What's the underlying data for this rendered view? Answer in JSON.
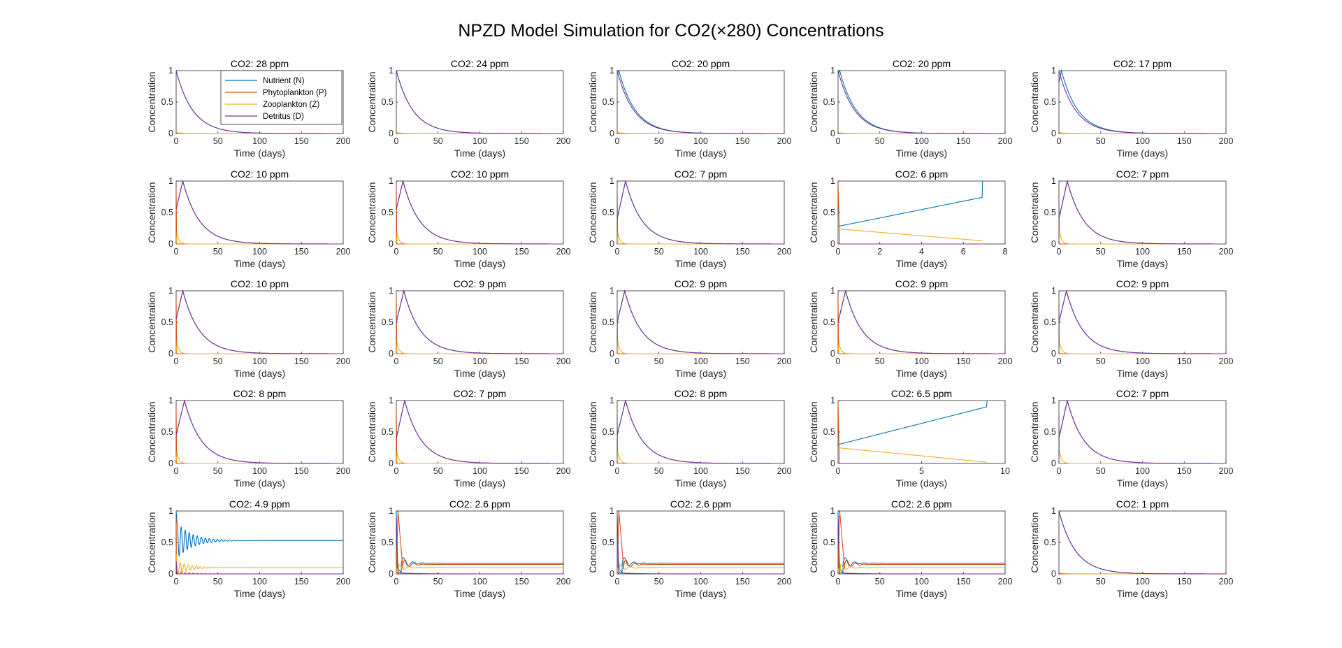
{
  "figure": {
    "title": "NPZD Model Simulation for CO2(×280) Concentrations",
    "colors": {
      "N": "#0072BD",
      "P": "#D95319",
      "Z": "#EDB120",
      "D": "#7E2F8E"
    }
  },
  "legend": {
    "placement": "top-right of first panel",
    "entries": [
      "Nutrient (N)",
      "Phytoplankton (P)",
      "Zooplankton (Z)",
      "Detritus (D)"
    ]
  },
  "chart_data": [
    {
      "type": "line",
      "title": "CO2: 28 ppm",
      "kind": "decay",
      "nstart": 1,
      "nend": 1,
      "xlim": [
        0,
        200
      ],
      "xticks": [
        0,
        50,
        100,
        150,
        200
      ],
      "ylim": [
        0,
        1
      ],
      "yticks": [
        "0",
        "0.5",
        "1"
      ],
      "xlabel": "Time (days)",
      "ylabel": "Concentration"
    },
    {
      "type": "line",
      "title": "CO2: 24 ppm",
      "kind": "decay",
      "nstart": 1,
      "nend": 1,
      "xlim": [
        0,
        200
      ],
      "xticks": [
        0,
        50,
        100,
        150,
        200
      ],
      "ylim": [
        0,
        1
      ],
      "yticks": [
        "0",
        "0.5",
        "1"
      ],
      "xlabel": "Time (days)",
      "ylabel": "Concentration"
    },
    {
      "type": "line",
      "title": "CO2: 20 ppm",
      "kind": "decay",
      "nstart": 0.95,
      "nend": 2,
      "xlim": [
        0,
        200
      ],
      "xticks": [
        0,
        50,
        100,
        150,
        200
      ],
      "ylim": [
        0,
        1
      ],
      "yticks": [
        "0",
        "0.5",
        "1"
      ],
      "xlabel": "Time (days)",
      "ylabel": "Concentration"
    },
    {
      "type": "line",
      "title": "CO2: 20 ppm",
      "kind": "decay",
      "nstart": 0.95,
      "nend": 2,
      "xlim": [
        0,
        200
      ],
      "xticks": [
        0,
        50,
        100,
        150,
        200
      ],
      "ylim": [
        0,
        1
      ],
      "yticks": [
        "0",
        "0.5",
        "1"
      ],
      "xlabel": "Time (days)",
      "ylabel": "Concentration"
    },
    {
      "type": "line",
      "title": "CO2: 17 ppm",
      "kind": "decay",
      "nstart": 0.8,
      "nend": 3,
      "xlim": [
        0,
        200
      ],
      "xticks": [
        0,
        50,
        100,
        150,
        200
      ],
      "ylim": [
        0,
        1
      ],
      "yticks": [
        "0",
        "0.5",
        "1"
      ],
      "xlabel": "Time (days)",
      "ylabel": "Concentration"
    },
    {
      "type": "line",
      "title": "CO2: 10 ppm",
      "kind": "rise",
      "nstart": 0.55,
      "nend": 8,
      "xlim": [
        0,
        200
      ],
      "xticks": [
        0,
        50,
        100,
        150,
        200
      ],
      "ylim": [
        0,
        1
      ],
      "yticks": [
        "0",
        "0.5",
        "1"
      ],
      "xlabel": "Time (days)",
      "ylabel": "Concentration"
    },
    {
      "type": "line",
      "title": "CO2: 10 ppm",
      "kind": "rise",
      "nstart": 0.55,
      "nend": 8,
      "xlim": [
        0,
        200
      ],
      "xticks": [
        0,
        50,
        100,
        150,
        200
      ],
      "ylim": [
        0,
        1
      ],
      "yticks": [
        "0",
        "0.5",
        "1"
      ],
      "xlabel": "Time (days)",
      "ylabel": "Concentration"
    },
    {
      "type": "line",
      "title": "CO2: 7 ppm",
      "kind": "rise",
      "nstart": 0.4,
      "nend": 10,
      "xlim": [
        0,
        200
      ],
      "xticks": [
        0,
        50,
        100,
        150,
        200
      ],
      "ylim": [
        0,
        1
      ],
      "yticks": [
        "0",
        "0.5",
        "1"
      ],
      "xlabel": "Time (days)",
      "ylabel": "Concentration"
    },
    {
      "type": "line",
      "title": "CO2: 6 ppm",
      "kind": "short",
      "tend": 6.9,
      "nstart": 0.28,
      "nbeforejump": 0.74,
      "zstart": 0.24,
      "zend": 0.05,
      "xlim": [
        0,
        8
      ],
      "xticks": [
        0,
        2,
        4,
        6,
        8
      ],
      "ylim": [
        0,
        1
      ],
      "yticks": [
        "0",
        "0.5",
        "1"
      ],
      "xlabel": "Time (days)",
      "ylabel": "Concentration"
    },
    {
      "type": "line",
      "title": "CO2: 7 ppm",
      "kind": "rise",
      "nstart": 0.4,
      "nend": 10,
      "xlim": [
        0,
        200
      ],
      "xticks": [
        0,
        50,
        100,
        150,
        200
      ],
      "ylim": [
        0,
        1
      ],
      "yticks": [
        "0",
        "0.5",
        "1"
      ],
      "xlabel": "Time (days)",
      "ylabel": "Concentration"
    },
    {
      "type": "line",
      "title": "CO2: 10 ppm",
      "kind": "rise",
      "nstart": 0.55,
      "nend": 8,
      "xlim": [
        0,
        200
      ],
      "xticks": [
        0,
        50,
        100,
        150,
        200
      ],
      "ylim": [
        0,
        1
      ],
      "yticks": [
        "0",
        "0.5",
        "1"
      ],
      "xlabel": "Time (days)",
      "ylabel": "Concentration"
    },
    {
      "type": "line",
      "title": "CO2: 9 ppm",
      "kind": "rise",
      "nstart": 0.5,
      "nend": 9,
      "xlim": [
        0,
        200
      ],
      "xticks": [
        0,
        50,
        100,
        150,
        200
      ],
      "ylim": [
        0,
        1
      ],
      "yticks": [
        "0",
        "0.5",
        "1"
      ],
      "xlabel": "Time (days)",
      "ylabel": "Concentration"
    },
    {
      "type": "line",
      "title": "CO2: 9 ppm",
      "kind": "rise",
      "nstart": 0.5,
      "nend": 9,
      "xlim": [
        0,
        200
      ],
      "xticks": [
        0,
        50,
        100,
        150,
        200
      ],
      "ylim": [
        0,
        1
      ],
      "yticks": [
        "0",
        "0.5",
        "1"
      ],
      "xlabel": "Time (days)",
      "ylabel": "Concentration"
    },
    {
      "type": "line",
      "title": "CO2: 9 ppm",
      "kind": "rise",
      "nstart": 0.5,
      "nend": 9,
      "xlim": [
        0,
        200
      ],
      "xticks": [
        0,
        50,
        100,
        150,
        200
      ],
      "ylim": [
        0,
        1
      ],
      "yticks": [
        "0",
        "0.5",
        "1"
      ],
      "xlabel": "Time (days)",
      "ylabel": "Concentration"
    },
    {
      "type": "line",
      "title": "CO2: 9 ppm",
      "kind": "rise",
      "nstart": 0.5,
      "nend": 9,
      "xlim": [
        0,
        200
      ],
      "xticks": [
        0,
        50,
        100,
        150,
        200
      ],
      "ylim": [
        0,
        1
      ],
      "yticks": [
        "0",
        "0.5",
        "1"
      ],
      "xlabel": "Time (days)",
      "ylabel": "Concentration"
    },
    {
      "type": "line",
      "title": "CO2: 8 ppm",
      "kind": "rise",
      "nstart": 0.45,
      "nend": 10,
      "xlim": [
        0,
        200
      ],
      "xticks": [
        0,
        50,
        100,
        150,
        200
      ],
      "ylim": [
        0,
        1
      ],
      "yticks": [
        "0",
        "0.5",
        "1"
      ],
      "xlabel": "Time (days)",
      "ylabel": "Concentration"
    },
    {
      "type": "line",
      "title": "CO2: 7 ppm",
      "kind": "rise",
      "nstart": 0.4,
      "nend": 10,
      "xlim": [
        0,
        200
      ],
      "xticks": [
        0,
        50,
        100,
        150,
        200
      ],
      "ylim": [
        0,
        1
      ],
      "yticks": [
        "0",
        "0.5",
        "1"
      ],
      "xlabel": "Time (days)",
      "ylabel": "Concentration"
    },
    {
      "type": "line",
      "title": "CO2: 8 ppm",
      "kind": "rise",
      "nstart": 0.45,
      "nend": 10,
      "xlim": [
        0,
        200
      ],
      "xticks": [
        0,
        50,
        100,
        150,
        200
      ],
      "ylim": [
        0,
        1
      ],
      "yticks": [
        "0",
        "0.5",
        "1"
      ],
      "xlabel": "Time (days)",
      "ylabel": "Concentration"
    },
    {
      "type": "line",
      "title": "CO2: 6.5 ppm",
      "kind": "short",
      "tend": 8.9,
      "nstart": 0.3,
      "nbeforejump": 0.9,
      "zstart": 0.25,
      "zend": 0.02,
      "xlim": [
        0,
        10
      ],
      "xticks": [
        0,
        5,
        10
      ],
      "ylim": [
        0,
        1
      ],
      "yticks": [
        "0",
        "0.5",
        "1"
      ],
      "xlabel": "Time (days)",
      "ylabel": "Concentration"
    },
    {
      "type": "line",
      "title": "CO2: 7 ppm",
      "kind": "rise",
      "nstart": 0.4,
      "nend": 10,
      "xlim": [
        0,
        200
      ],
      "xticks": [
        0,
        50,
        100,
        150,
        200
      ],
      "ylim": [
        0,
        1
      ],
      "yticks": [
        "0",
        "0.5",
        "1"
      ],
      "xlabel": "Time (days)",
      "ylabel": "Concentration"
    },
    {
      "type": "line",
      "title": "CO2: 4.9 ppm",
      "kind": "osc",
      "neq": 0.53,
      "zeq": 0.1,
      "xlim": [
        0,
        200
      ],
      "xticks": [
        0,
        50,
        100,
        150,
        200
      ],
      "ylim": [
        0,
        1
      ],
      "yticks": [
        "0",
        "0.5",
        "1"
      ],
      "xlabel": "Time (days)",
      "ylabel": "Concentration"
    },
    {
      "type": "line",
      "title": "CO2: 2.6 ppm",
      "kind": "bloom",
      "neq": 0.17,
      "peq": 0.15,
      "zeq": 0.1,
      "xlim": [
        0,
        200
      ],
      "xticks": [
        0,
        50,
        100,
        150,
        200
      ],
      "ylim": [
        0,
        1
      ],
      "yticks": [
        "0",
        "0.5",
        "1"
      ],
      "xlabel": "Time (days)",
      "ylabel": "Concentration"
    },
    {
      "type": "line",
      "title": "CO2: 2.6 ppm",
      "kind": "bloom",
      "neq": 0.17,
      "peq": 0.15,
      "zeq": 0.1,
      "xlim": [
        0,
        200
      ],
      "xticks": [
        0,
        50,
        100,
        150,
        200
      ],
      "ylim": [
        0,
        1
      ],
      "yticks": [
        "0",
        "0.5",
        "1"
      ],
      "xlabel": "Time (days)",
      "ylabel": "Concentration"
    },
    {
      "type": "line",
      "title": "CO2: 2.6 ppm",
      "kind": "bloom",
      "neq": 0.17,
      "peq": 0.15,
      "zeq": 0.1,
      "xlim": [
        0,
        200
      ],
      "xticks": [
        0,
        50,
        100,
        150,
        200
      ],
      "ylim": [
        0,
        1
      ],
      "yticks": [
        "0",
        "0.5",
        "1"
      ],
      "xlabel": "Time (days)",
      "ylabel": "Concentration"
    },
    {
      "type": "line",
      "title": "CO2: 1 ppm",
      "kind": "decay",
      "nstart": 1,
      "nend": 1,
      "xlim": [
        0,
        200
      ],
      "xticks": [
        0,
        50,
        100,
        150,
        200
      ],
      "ylim": [
        0,
        1
      ],
      "yticks": [
        "0",
        "0.5",
        "1"
      ],
      "xlabel": "Time (days)",
      "ylabel": "Concentration"
    }
  ]
}
